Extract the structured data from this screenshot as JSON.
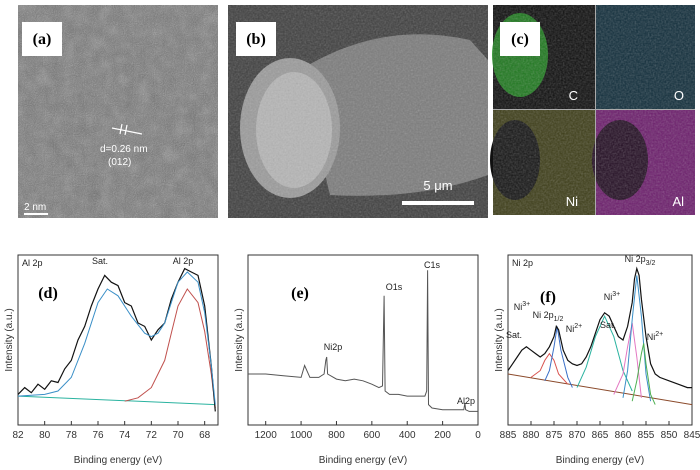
{
  "panels": {
    "a": {
      "label": "(a)",
      "d_spacing": "d=0.26 nm",
      "plane": "(012)",
      "scale_bar": "2 nm"
    },
    "b": {
      "label": "(b)",
      "scale_bar": "5 μm"
    },
    "c": {
      "label": "(c)",
      "maps": [
        "C",
        "O",
        "Ni",
        "Al"
      ]
    }
  },
  "chart_data": [
    {
      "type": "line",
      "label": "(d)",
      "title": "Al 2p",
      "xlabel": "Binding energy (eV)",
      "ylabel": "Intensity (a.u.)",
      "xlim": [
        82,
        67
      ],
      "ylim": [
        0,
        100
      ],
      "xticks": [
        82,
        80,
        78,
        76,
        74,
        72,
        70,
        68
      ],
      "annotations": [
        {
          "text": "Sat."
        },
        {
          "text": "Al 2p"
        }
      ],
      "series": [
        {
          "color": "#2bb3a0",
          "x": [
            82,
            67.2
          ],
          "values": [
            17,
            12
          ]
        },
        {
          "color": "#c0504d",
          "x": [
            74,
            73,
            72,
            71,
            70.5,
            70,
            69.3,
            68.5,
            68,
            67.5,
            67.2
          ],
          "values": [
            14,
            16,
            22,
            38,
            54,
            70,
            80,
            72,
            55,
            30,
            10
          ]
        },
        {
          "color": "#111111",
          "x": [
            82,
            81.5,
            81,
            80.5,
            80,
            79.5,
            79,
            78.5,
            78,
            77.5,
            77,
            76.5,
            76,
            75.5,
            75,
            74.5,
            74,
            73.5,
            73,
            72.5,
            72,
            71.5,
            71,
            70.5,
            70,
            69.5,
            69,
            68.5,
            68,
            67.5,
            67.2
          ],
          "values": [
            18,
            22,
            19,
            24,
            21,
            26,
            25,
            33,
            38,
            50,
            58,
            70,
            80,
            88,
            84,
            82,
            72,
            70,
            60,
            58,
            50,
            56,
            60,
            74,
            84,
            92,
            90,
            88,
            70,
            35,
            8
          ]
        },
        {
          "color": "#3a8fc7",
          "x": [
            82,
            80,
            79,
            78,
            77,
            76,
            75.3,
            74.5,
            73.5,
            72.5,
            72,
            71.5,
            71,
            70.5,
            70,
            69.3,
            68.5,
            68,
            67.5,
            67.2
          ],
          "values": [
            17,
            18,
            20,
            28,
            48,
            72,
            80,
            76,
            64,
            54,
            52,
            54,
            60,
            72,
            84,
            90,
            84,
            66,
            35,
            12
          ]
        }
      ]
    },
    {
      "type": "line",
      "label": "(e)",
      "xlabel": "Binding energy (eV)",
      "ylabel": "Intensity (a.u.)",
      "xlim": [
        1300,
        0
      ],
      "ylim": [
        0,
        100
      ],
      "xticks": [
        1200,
        1000,
        800,
        600,
        400,
        200,
        0
      ],
      "annotations": [
        {
          "text": "Ni2p"
        },
        {
          "text": "O1s"
        },
        {
          "text": "C1s"
        },
        {
          "text": "Al2p"
        }
      ],
      "series": [
        {
          "color": "#555555",
          "x": [
            1300,
            1200,
            1100,
            1000,
            980,
            950,
            900,
            870,
            860,
            855,
            850,
            800,
            750,
            700,
            650,
            600,
            560,
            540,
            531,
            525,
            500,
            450,
            400,
            350,
            300,
            290,
            285,
            280,
            260,
            200,
            150,
            100,
            80,
            74,
            70,
            50,
            0
          ],
          "values": [
            30,
            30,
            29,
            28,
            35,
            28,
            28,
            30,
            38,
            40,
            30,
            27,
            26,
            27,
            26,
            24,
            22,
            23,
            76,
            20,
            18,
            18,
            17,
            17,
            17,
            20,
            91,
            12,
            10,
            9,
            9,
            9,
            9,
            13,
            9,
            8,
            8
          ]
        }
      ]
    },
    {
      "type": "line",
      "label": "(f)",
      "title": "Ni 2p",
      "xlabel": "Binding energy (eV)",
      "ylabel": "Intensity (a.u.)",
      "xlim": [
        885,
        845
      ],
      "ylim": [
        0,
        100
      ],
      "xticks": [
        885,
        880,
        875,
        870,
        865,
        860,
        855,
        850,
        845
      ],
      "annotations": [
        {
          "text": "Ni 2p",
          "sub": "3/2"
        },
        {
          "text": "Ni",
          "sup": "3+"
        },
        {
          "text": "Ni",
          "sup": "2+"
        },
        {
          "text": "Sat."
        },
        {
          "text": "Ni 2p",
          "sub": "1/2"
        },
        {
          "text": "Ni",
          "sup": "3+"
        },
        {
          "text": "Ni",
          "sup": "2+"
        },
        {
          "text": "Sat."
        }
      ],
      "series": [
        {
          "color": "#8b4a2b",
          "x": [
            885,
            845
          ],
          "values": [
            30,
            12
          ]
        },
        {
          "color": "#d9534f",
          "x": [
            880,
            878,
            877,
            876,
            875,
            874,
            872
          ],
          "values": [
            28,
            32,
            38,
            42,
            38,
            30,
            24
          ]
        },
        {
          "color": "#3a6fc7",
          "x": [
            877,
            876,
            875,
            874.3,
            873.5,
            872,
            871
          ],
          "values": [
            26,
            32,
            46,
            58,
            44,
            28,
            22
          ]
        },
        {
          "color": "#2bb3a0",
          "x": [
            870,
            868,
            866,
            864,
            862,
            860,
            858
          ],
          "values": [
            22,
            34,
            52,
            64,
            52,
            32,
            20
          ]
        },
        {
          "color": "#e377c2",
          "x": [
            862,
            860,
            859,
            858,
            857,
            856
          ],
          "values": [
            18,
            30,
            46,
            60,
            40,
            16
          ]
        },
        {
          "color": "#3a8fc7",
          "x": [
            860,
            859,
            858,
            857,
            856,
            855,
            854
          ],
          "values": [
            16,
            32,
            62,
            88,
            64,
            30,
            14
          ]
        },
        {
          "color": "#4caf50",
          "x": [
            858,
            857,
            856,
            855.5,
            855,
            854,
            853
          ],
          "values": [
            14,
            26,
            42,
            48,
            36,
            18,
            12
          ]
        },
        {
          "color": "#111111",
          "x": [
            885,
            884,
            883,
            882,
            881,
            880,
            879,
            878,
            877,
            876,
            875,
            874.5,
            874,
            873,
            872,
            871,
            870,
            869,
            868,
            867,
            866,
            865,
            864,
            863,
            862,
            861,
            860,
            859,
            858,
            857.5,
            857,
            856.5,
            856,
            855,
            854,
            853,
            852,
            850,
            848,
            846,
            845
          ],
          "values": [
            32,
            36,
            40,
            44,
            46,
            44,
            42,
            40,
            42,
            46,
            52,
            58,
            56,
            44,
            38,
            36,
            35,
            36,
            40,
            46,
            54,
            62,
            66,
            64,
            58,
            52,
            50,
            58,
            72,
            86,
            92,
            88,
            74,
            52,
            36,
            30,
            28,
            26,
            24,
            22,
            22
          ]
        }
      ]
    }
  ]
}
